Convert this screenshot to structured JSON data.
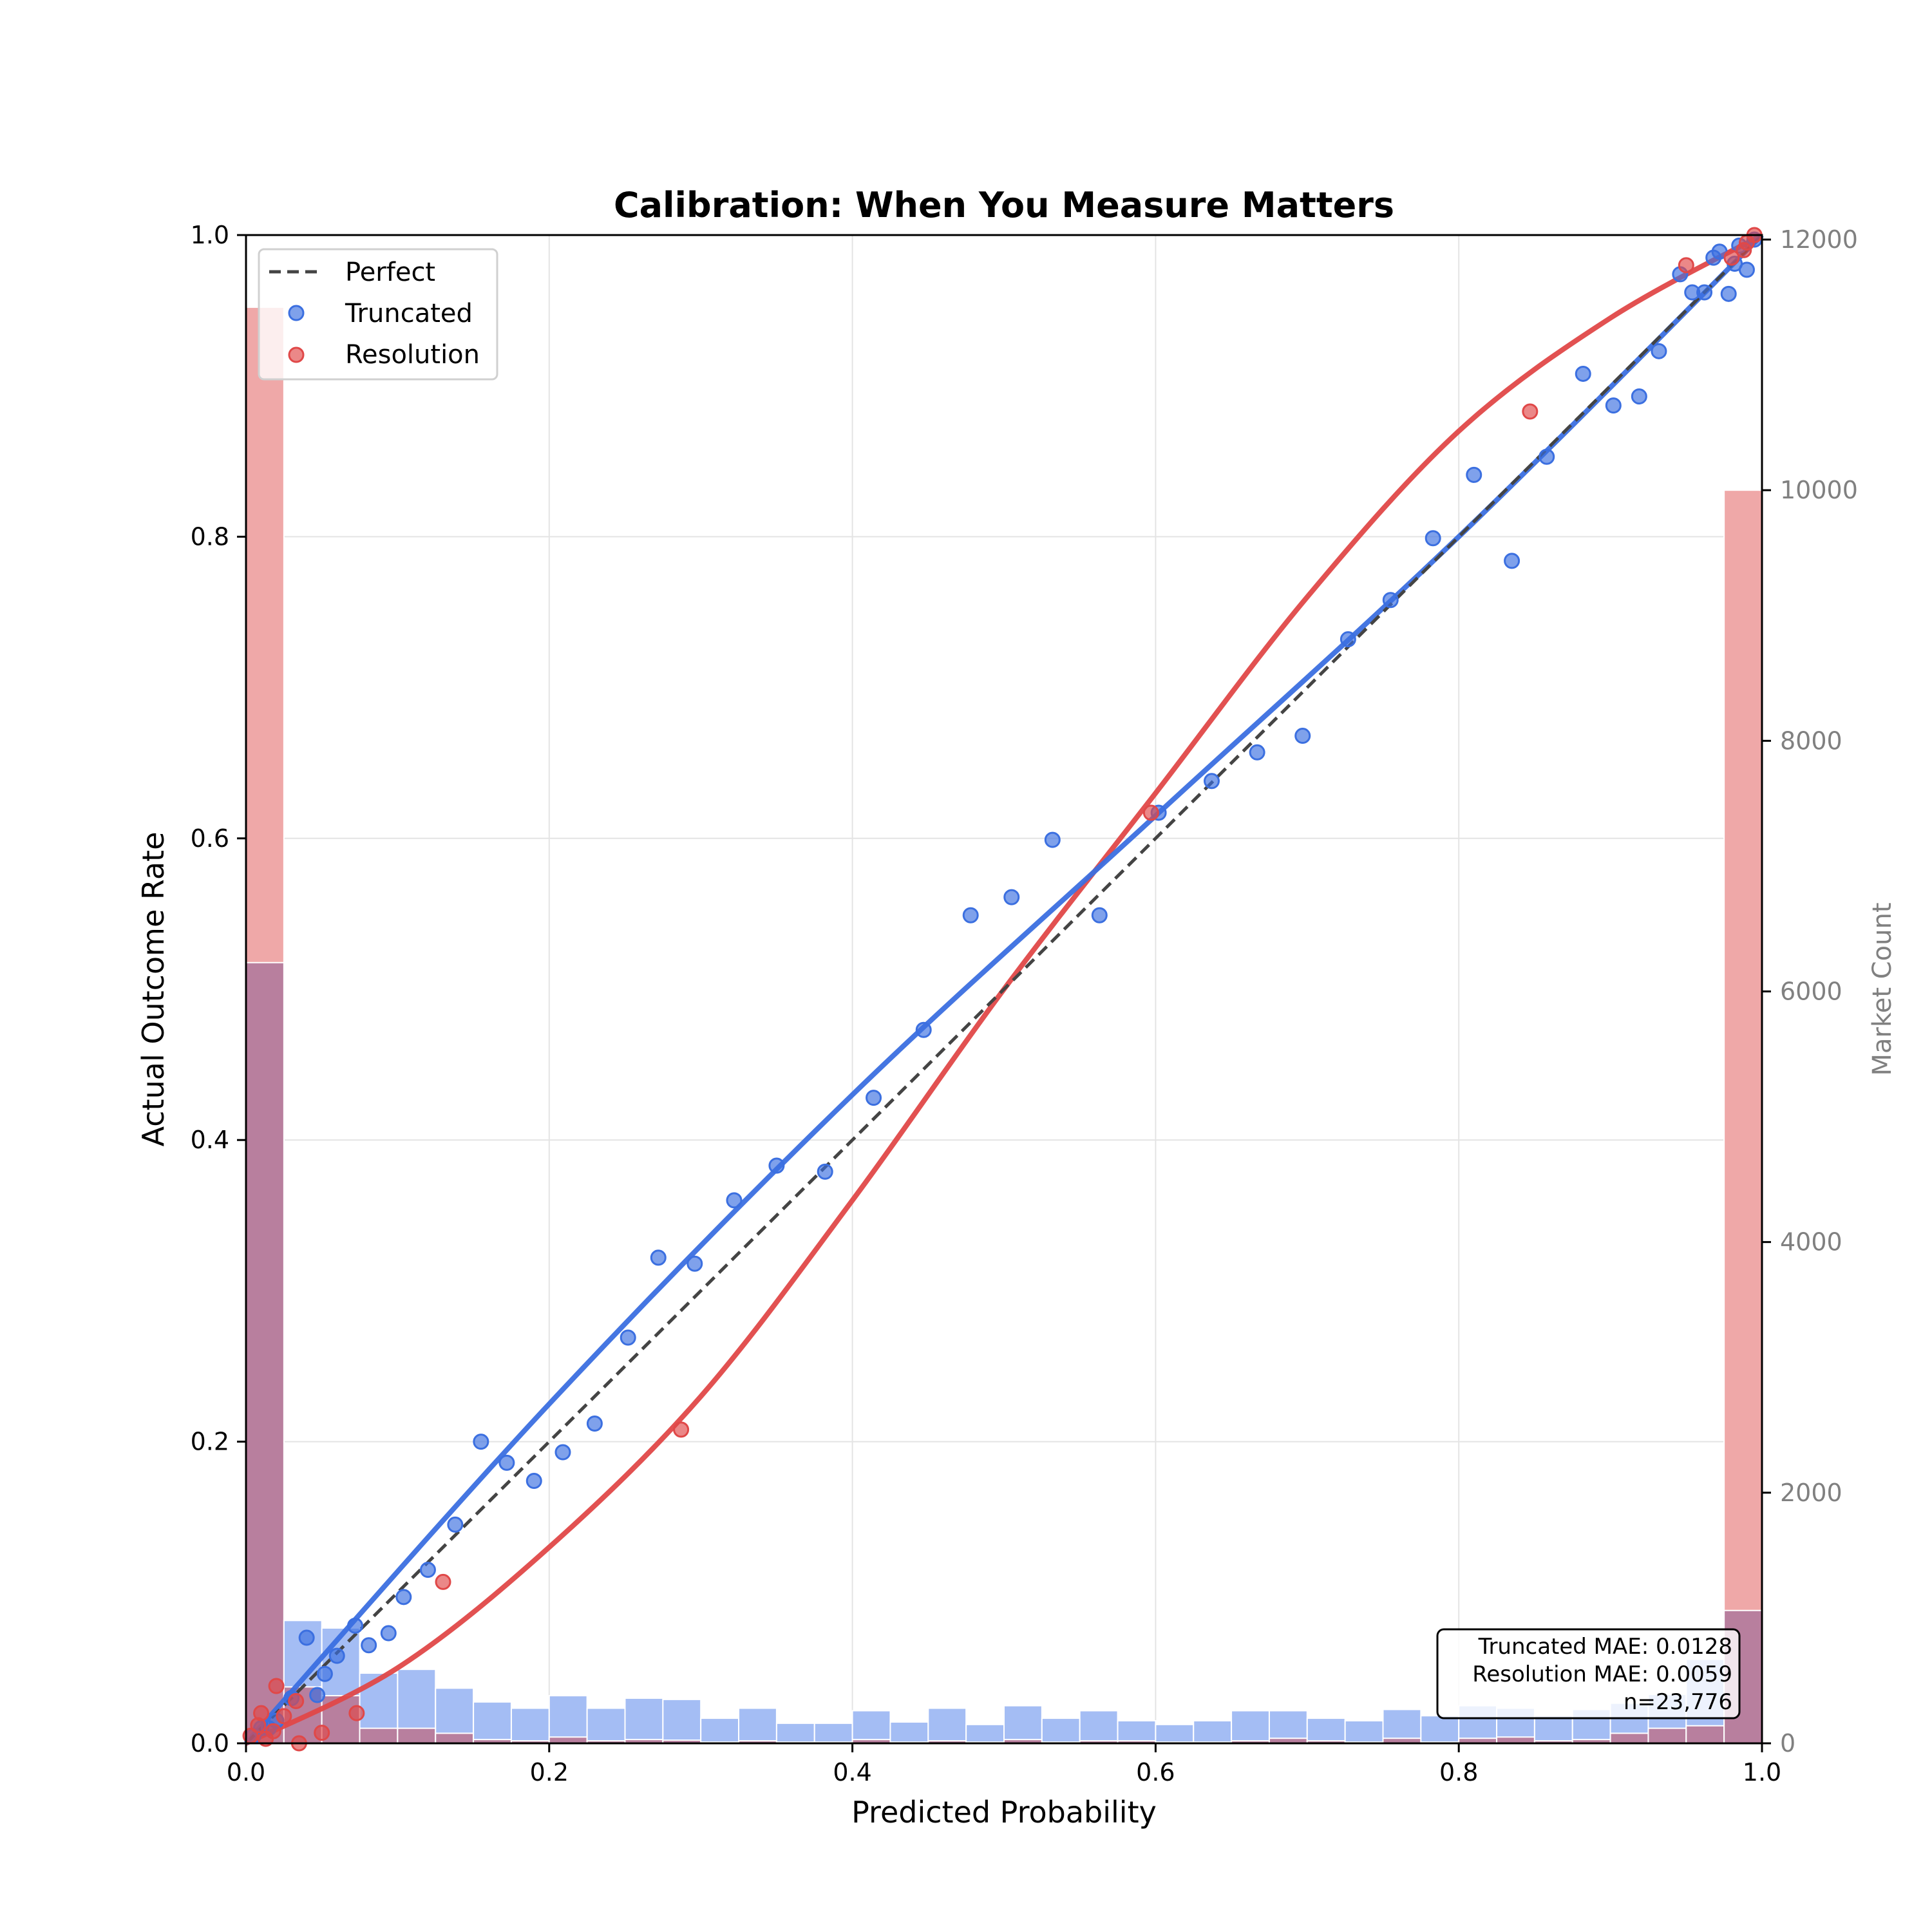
{
  "chart_data": {
    "type": "scatter",
    "title": "Calibration: When You Measure Matters",
    "xlabel": "Predicted Probability",
    "ylabel": "Actual Outcome Rate",
    "ylabel_right": "Market Count",
    "xlim": [
      0.0,
      1.0
    ],
    "ylim": [
      0.0,
      1.0
    ],
    "ylim_right": [
      0,
      12000
    ],
    "grid": true,
    "legend_position": "upper left",
    "x_ticks": [
      "0.0",
      "0.2",
      "0.4",
      "0.6",
      "0.8",
      "1.0"
    ],
    "y_ticks": [
      "0.0",
      "0.2",
      "0.4",
      "0.6",
      "0.8",
      "1.0"
    ],
    "y_ticks_right": [
      "0",
      "2000",
      "4000",
      "6000",
      "8000",
      "10000",
      "12000"
    ],
    "legend": [
      {
        "label": "Perfect",
        "style": "dashed-line",
        "color": "#444444"
      },
      {
        "label": "Truncated",
        "style": "marker",
        "color": "#3b6fe0"
      },
      {
        "label": "Resolution",
        "style": "marker",
        "color": "#e04848"
      }
    ],
    "annotation": {
      "lines": [
        "Truncated MAE: 0.0128",
        "Resolution MAE: 0.0059",
        "n=23,776"
      ]
    },
    "series": [
      {
        "name": "Perfect",
        "kind": "line",
        "x": [
          0.0,
          1.0
        ],
        "y": [
          0.0,
          1.0
        ]
      },
      {
        "name": "Truncated",
        "kind": "scatter",
        "color": "#3b6fe0",
        "points": [
          [
            0.005,
            0.005
          ],
          [
            0.01,
            0.01
          ],
          [
            0.015,
            0.01
          ],
          [
            0.02,
            0.015
          ],
          [
            0.03,
            0.03
          ],
          [
            0.04,
            0.07
          ],
          [
            0.047,
            0.032
          ],
          [
            0.052,
            0.046
          ],
          [
            0.06,
            0.058
          ],
          [
            0.072,
            0.078
          ],
          [
            0.081,
            0.065
          ],
          [
            0.094,
            0.073
          ],
          [
            0.104,
            0.097
          ],
          [
            0.12,
            0.115
          ],
          [
            0.138,
            0.145
          ],
          [
            0.155,
            0.2
          ],
          [
            0.172,
            0.186
          ],
          [
            0.19,
            0.174
          ],
          [
            0.209,
            0.193
          ],
          [
            0.23,
            0.212
          ],
          [
            0.252,
            0.269
          ],
          [
            0.272,
            0.322
          ],
          [
            0.296,
            0.318
          ],
          [
            0.322,
            0.36
          ],
          [
            0.35,
            0.383
          ],
          [
            0.382,
            0.379
          ],
          [
            0.414,
            0.428
          ],
          [
            0.447,
            0.473
          ],
          [
            0.478,
            0.549
          ],
          [
            0.505,
            0.561
          ],
          [
            0.532,
            0.599
          ],
          [
            0.563,
            0.549
          ],
          [
            0.602,
            0.617
          ],
          [
            0.637,
            0.638
          ],
          [
            0.667,
            0.657
          ],
          [
            0.697,
            0.668
          ],
          [
            0.727,
            0.732
          ],
          [
            0.755,
            0.758
          ],
          [
            0.783,
            0.799
          ],
          [
            0.81,
            0.841
          ],
          [
            0.835,
            0.784
          ],
          [
            0.858,
            0.853
          ],
          [
            0.882,
            0.908
          ],
          [
            0.902,
            0.887
          ],
          [
            0.919,
            0.893
          ],
          [
            0.932,
            0.923
          ],
          [
            0.946,
            0.974
          ],
          [
            0.954,
            0.962
          ],
          [
            0.962,
            0.962
          ],
          [
            0.968,
            0.985
          ],
          [
            0.972,
            0.989
          ],
          [
            0.978,
            0.961
          ],
          [
            0.982,
            0.981
          ],
          [
            0.985,
            0.993
          ],
          [
            0.99,
            0.977
          ],
          [
            0.995,
            0.997
          ]
        ],
        "fit_curve": {
          "x": [
            0.0,
            0.2,
            0.4,
            0.6,
            0.8,
            1.0
          ],
          "y": [
            0.0,
            0.225,
            0.43,
            0.615,
            0.8,
            1.0
          ]
        }
      },
      {
        "name": "Resolution",
        "kind": "scatter",
        "color": "#e04848",
        "points": [
          [
            0.003,
            0.005
          ],
          [
            0.008,
            0.012
          ],
          [
            0.01,
            0.02
          ],
          [
            0.013,
            0.003
          ],
          [
            0.018,
            0.008
          ],
          [
            0.02,
            0.038
          ],
          [
            0.025,
            0.018
          ],
          [
            0.033,
            0.028
          ],
          [
            0.035,
            0.0
          ],
          [
            0.05,
            0.007
          ],
          [
            0.073,
            0.02
          ],
          [
            0.13,
            0.107
          ],
          [
            0.287,
            0.208
          ],
          [
            0.597,
            0.617
          ],
          [
            0.847,
            0.883
          ],
          [
            0.95,
            0.98
          ],
          [
            0.98,
            0.985
          ],
          [
            0.988,
            0.99
          ],
          [
            0.99,
            0.995
          ],
          [
            0.995,
            1.0
          ]
        ],
        "fit_curve": {
          "x": [
            0.0,
            0.1,
            0.2,
            0.3,
            0.4,
            0.5,
            0.6,
            0.7,
            0.8,
            0.9,
            1.0
          ],
          "y": [
            0.0,
            0.05,
            0.13,
            0.23,
            0.36,
            0.5,
            0.63,
            0.76,
            0.87,
            0.945,
            1.0
          ]
        }
      }
    ],
    "histogram": {
      "bin_width": 0.025,
      "bins_start": 0.0,
      "truncated_counts": [
        6230,
        980,
        920,
        560,
        590,
        440,
        330,
        280,
        380,
        280,
        360,
        350,
        200,
        280,
        160,
        160,
        260,
        170,
        280,
        150,
        300,
        200,
        260,
        180,
        150,
        180,
        260,
        260,
        200,
        180,
        270,
        220,
        300,
        280,
        220,
        270,
        320,
        390,
        670,
        1060
      ],
      "resolution_counts": [
        11460,
        450,
        380,
        120,
        120,
        80,
        30,
        20,
        50,
        20,
        30,
        25,
        10,
        20,
        10,
        10,
        30,
        10,
        20,
        10,
        30,
        10,
        20,
        20,
        10,
        10,
        20,
        40,
        20,
        10,
        40,
        10,
        40,
        50,
        20,
        30,
        80,
        120,
        140,
        10000
      ],
      "overlap_color": "#b87f9e",
      "truncated_color": "#a4bdf4",
      "resolution_color": "#efa8a8"
    }
  }
}
